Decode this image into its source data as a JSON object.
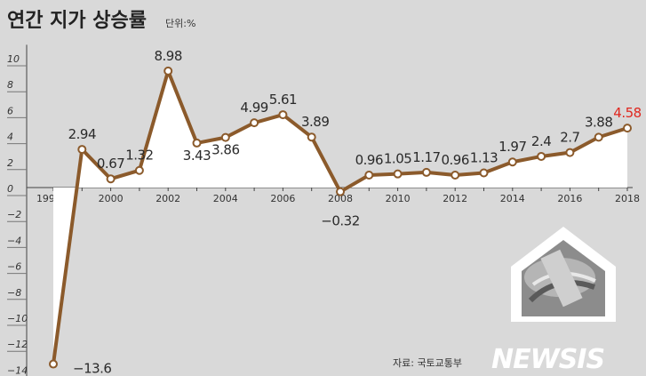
{
  "header": {
    "title": "연간 지가 상승률",
    "unit": "단위:%"
  },
  "footer": {
    "source": "자료: 국토교통부",
    "brand": "NEWSIS"
  },
  "colors": {
    "line": "#8b5a2b",
    "marker_fill": "#ffffff",
    "fill": "#ffffff",
    "background": "#d9d9d9",
    "highlight": "#e0261e",
    "grid": "#bcbcbc"
  },
  "chart_data": {
    "type": "line",
    "x": [
      1998,
      1999,
      2000,
      2001,
      2002,
      2003,
      2004,
      2005,
      2006,
      2007,
      2008,
      2009,
      2010,
      2011,
      2012,
      2013,
      2014,
      2015,
      2016,
      2017,
      2018
    ],
    "values": [
      -13.6,
      2.94,
      0.67,
      1.32,
      8.98,
      3.43,
      3.86,
      4.99,
      5.61,
      3.89,
      -0.32,
      0.96,
      1.05,
      1.17,
      0.96,
      1.13,
      1.97,
      2.4,
      2.7,
      3.88,
      4.58
    ],
    "data_labels": [
      "−13.6",
      "2.94",
      "0.67",
      "1.32",
      "8.98",
      "3.43",
      "3.86",
      "4.99",
      "5.61",
      "3.89",
      "−0.32",
      "0.96",
      "1.05",
      "1.17",
      "0.96",
      "1.13",
      "1.97",
      "2.4",
      "2.7",
      "3.88",
      "4.58"
    ],
    "x_tick_labels": [
      "1998년",
      "2000",
      "2002",
      "2004",
      "2006",
      "2008",
      "2010",
      "2012",
      "2014",
      "2016",
      "2018"
    ],
    "x_tick_values": [
      1998,
      2000,
      2002,
      2004,
      2006,
      2008,
      2010,
      2012,
      2014,
      2016,
      2018
    ],
    "y_tick_labels": [
      "10",
      "8",
      "6",
      "4",
      "2",
      "0",
      "−2",
      "−4",
      "−6",
      "−8",
      "−10",
      "−12",
      "−14"
    ],
    "y_tick_values": [
      10,
      8,
      6,
      4,
      2,
      0,
      -2,
      -4,
      -6,
      -8,
      -10,
      -12,
      -14
    ],
    "ylim": [
      -15,
      11
    ],
    "xlim": [
      1998,
      2018
    ],
    "highlight_last": true,
    "grid": false
  }
}
